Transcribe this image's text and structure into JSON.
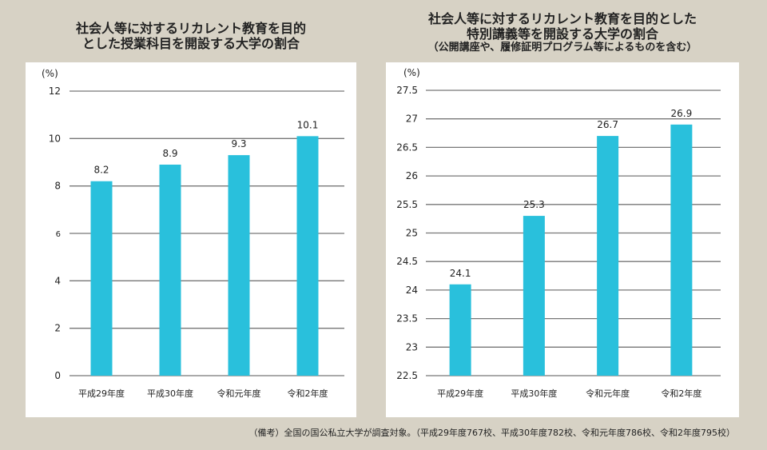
{
  "charts": [
    {
      "title_line1": "社会人等に対するリカレント教育を目的",
      "title_line2": "とした授業科目を開設する大学の割合"
    },
    {
      "title_line1": "社会人等に対するリカレント教育を目的とした",
      "title_line2": "特別講義等を開設する大学の割合",
      "subtitle": "（公開講座や、履修証明プログラム等によるものを含む）"
    }
  ],
  "note": "（備考）全国の国公私立大学が調査対象。（平成29年度767校、平成30年度782校、令和元年度786校、令和2年度795校）",
  "colors": {
    "bar": "#29c0dc",
    "grid": "#777777",
    "background": "#d7d2c5",
    "panel": "#ffffff"
  },
  "chart_data": [
    {
      "type": "bar",
      "title": "社会人等に対するリカレント教育を目的とした授業科目を開設する大学の割合",
      "ylabel": "(%)",
      "xlabel": "",
      "categories": [
        "平成29年度",
        "平成30年度",
        "令和元年度",
        "令和2年度"
      ],
      "values": [
        8.2,
        8.9,
        9.3,
        10.1
      ],
      "value_labels": [
        "8.2",
        "8.9",
        "9.3",
        "10.1"
      ],
      "ylim": [
        0,
        12
      ],
      "yticks": [
        0,
        2,
        4,
        6,
        8,
        10,
        12
      ],
      "ytick_labels": [
        "0",
        "2",
        "4",
        "6",
        "8",
        "10",
        "12"
      ],
      "grid": true,
      "legend": "none"
    },
    {
      "type": "bar",
      "title": "社会人等に対するリカレント教育を目的とした特別講義等を開設する大学の割合（公開講座や、履修証明プログラム等によるものを含む）",
      "ylabel": "(%)",
      "xlabel": "",
      "categories": [
        "平成29年度",
        "平成30年度",
        "令和元年度",
        "令和2年度"
      ],
      "values": [
        24.1,
        25.3,
        26.7,
        26.9
      ],
      "value_labels": [
        "24.1",
        "25.3",
        "26.7",
        "26.9"
      ],
      "ylim": [
        22.5,
        27.5
      ],
      "yticks": [
        22.5,
        23,
        23.5,
        24,
        24.5,
        25,
        25.5,
        26,
        26.5,
        27,
        27.5
      ],
      "ytick_labels": [
        "22.5",
        "23",
        "23.5",
        "24",
        "24.5",
        "25",
        "25.5",
        "26",
        "26.5",
        "27",
        "27.5"
      ],
      "grid": true,
      "legend": "none"
    }
  ]
}
